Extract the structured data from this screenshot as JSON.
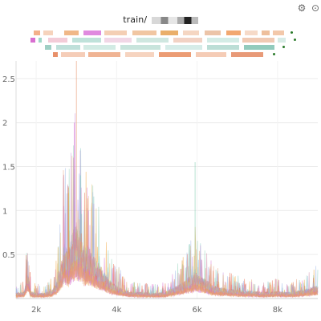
{
  "panel": {
    "title": "train/",
    "settings_icon": "gear-icon",
    "menu_icon": "more-options-icon"
  },
  "chart_data": {
    "type": "line",
    "title": "train/",
    "xlabel": "",
    "ylabel": "",
    "x_ticks": [
      {
        "value": 2000,
        "label": "2k"
      },
      {
        "value": 4000,
        "label": "4k"
      },
      {
        "value": 6000,
        "label": "6k"
      },
      {
        "value": 8000,
        "label": "8k"
      }
    ],
    "y_ticks": [
      {
        "value": 0.5,
        "label": "0.5"
      },
      {
        "value": 1,
        "label": "1"
      },
      {
        "value": 1.5,
        "label": "1.5"
      },
      {
        "value": 2,
        "label": "2"
      },
      {
        "value": 2.5,
        "label": "2.5"
      }
    ],
    "xlim": [
      1500,
      9000
    ],
    "ylim": [
      0,
      2.7
    ],
    "grid": true,
    "legend_placement": "top",
    "series_colors": [
      "#e8a07a",
      "#d86fd0",
      "#7ec8c0",
      "#f0a43c",
      "#c78ae0",
      "#8fd1b8",
      "#e86a4a",
      "#9fb8e8",
      "#e0c070",
      "#d08aa8"
    ],
    "envelope": {
      "x": [
        1500,
        1700,
        1800,
        1850,
        1900,
        2000,
        2200,
        2400,
        2500,
        2600,
        2700,
        2800,
        2900,
        3000,
        3050,
        3100,
        3200,
        3300,
        3400,
        3500,
        3600,
        3700,
        3800,
        4000,
        4200,
        4400,
        4600,
        4800,
        5000,
        5200,
        5400,
        5600,
        5800,
        5900,
        5950,
        6000,
        6100,
        6200,
        6400,
        6600,
        6800,
        7000,
        7200,
        7400,
        7600,
        7800,
        8000,
        8200,
        8400,
        8600,
        8800,
        9000
      ],
      "baseline": [
        0.05,
        0.06,
        0.25,
        0.08,
        0.06,
        0.05,
        0.05,
        0.08,
        0.15,
        0.3,
        0.5,
        0.45,
        0.6,
        0.7,
        0.55,
        0.65,
        0.45,
        0.5,
        0.4,
        0.35,
        0.3,
        0.25,
        0.18,
        0.12,
        0.08,
        0.06,
        0.06,
        0.05,
        0.05,
        0.06,
        0.1,
        0.14,
        0.2,
        0.22,
        0.28,
        0.22,
        0.2,
        0.18,
        0.12,
        0.1,
        0.09,
        0.08,
        0.07,
        0.07,
        0.06,
        0.06,
        0.07,
        0.06,
        0.06,
        0.08,
        0.1,
        0.12
      ],
      "peaks": [
        {
          "x": 3000,
          "y": 2.7
        },
        {
          "x": 2950,
          "y": 2.0
        },
        {
          "x": 3100,
          "y": 1.4
        },
        {
          "x": 2800,
          "y": 1.2
        },
        {
          "x": 3300,
          "y": 1.0
        },
        {
          "x": 5950,
          "y": 1.55
        },
        {
          "x": 1850,
          "y": 0.3
        }
      ]
    }
  }
}
